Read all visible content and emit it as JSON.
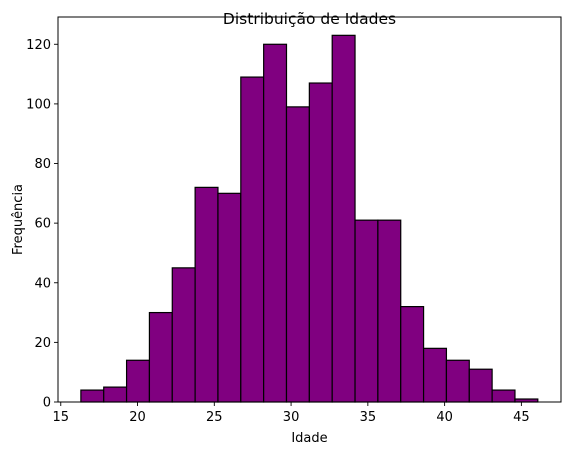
{
  "chart_data": {
    "type": "bar",
    "title": "Distribuição de Idades",
    "xlabel": "Idade",
    "ylabel": "Frequência",
    "xlim": [
      14.82,
      47.58
    ],
    "ylim": [
      0,
      129.15
    ],
    "xticks": [
      15,
      20,
      25,
      30,
      35,
      40,
      45
    ],
    "yticks": [
      0,
      20,
      40,
      60,
      80,
      100,
      120
    ],
    "bin_start": 16.31,
    "bin_width": 1.488,
    "values": [
      4,
      5,
      14,
      30,
      45,
      72,
      70,
      109,
      120,
      99,
      107,
      123,
      61,
      61,
      32,
      18,
      14,
      11,
      4,
      1
    ],
    "grid": false,
    "bar_color": "#800080",
    "edge_color": "#000000"
  }
}
